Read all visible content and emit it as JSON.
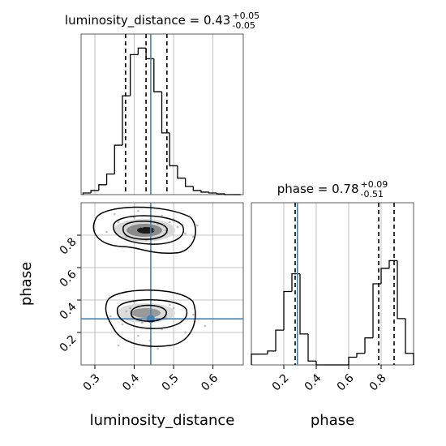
{
  "chart_data": [
    {
      "type": "histogram",
      "title": "luminosity_distance = 0.43",
      "title_plus": "+0.05",
      "title_minus": "-0.05",
      "bins": [
        0.27,
        0.29,
        0.31,
        0.33,
        0.35,
        0.37,
        0.39,
        0.41,
        0.43,
        0.45,
        0.47,
        0.49,
        0.51,
        0.53,
        0.55,
        0.57,
        0.59,
        0.61,
        0.63,
        0.65,
        0.67
      ],
      "counts": [
        2,
        5,
        12,
        25,
        60,
        120,
        170,
        178,
        165,
        125,
        75,
        35,
        20,
        10,
        5,
        3,
        2,
        1,
        0,
        0
      ],
      "xlim": [
        0.265,
        0.677
      ],
      "ylim": [
        0,
        195
      ],
      "color": "#000000",
      "quantiles": [
        0.378,
        0.43,
        0.483
      ],
      "truth": 0.442,
      "truth_color": "#4682b4",
      "grid": true
    },
    {
      "type": "scatter",
      "xlabel": "luminosity_distance",
      "ylabel": "phase",
      "x": [
        0.33,
        0.36,
        0.38,
        0.4,
        0.42,
        0.44,
        0.46,
        0.48,
        0.5,
        0.53,
        0.56,
        0.35,
        0.39,
        0.43,
        0.47,
        0.51,
        0.55,
        0.41,
        0.45,
        0.49,
        0.34,
        0.37,
        0.39,
        0.41,
        0.43,
        0.45,
        0.47,
        0.49,
        0.52,
        0.55,
        0.58,
        0.36,
        0.4,
        0.44,
        0.48,
        0.53,
        0.38,
        0.42,
        0.46,
        0.5
      ],
      "y": [
        0.82,
        0.88,
        0.79,
        0.91,
        0.85,
        0.8,
        0.87,
        0.83,
        0.9,
        0.81,
        0.86,
        0.93,
        0.84,
        0.77,
        0.92,
        0.85,
        0.79,
        0.95,
        0.83,
        0.88,
        0.3,
        0.25,
        0.35,
        0.18,
        0.28,
        0.32,
        0.22,
        0.37,
        0.27,
        0.31,
        0.24,
        0.12,
        0.39,
        0.15,
        0.29,
        0.2,
        0.33,
        0.26,
        0.1,
        0.35
      ],
      "color": "#9a9a9a",
      "xlim": [
        0.265,
        0.677
      ],
      "ylim": [
        0,
        1
      ],
      "xticks": [
        0.3,
        0.4,
        0.5,
        0.6
      ],
      "yticks": [
        0.2,
        0.4,
        0.6,
        0.8
      ],
      "truth": [
        0.442,
        0.284
      ],
      "truth_color": "#4682b4",
      "grid": true
    },
    {
      "type": "histogram",
      "title": "phase = 0.78",
      "title_plus": "+0.09",
      "title_minus": "-0.51",
      "xlabel": "phase",
      "bins": [
        0,
        0.05,
        0.1,
        0.15,
        0.2,
        0.25,
        0.3,
        0.35,
        0.4,
        0.45,
        0.5,
        0.55,
        0.6,
        0.65,
        0.7,
        0.75,
        0.8,
        0.85,
        0.9,
        0.95,
        1.0
      ],
      "counts": [
        14,
        14,
        18,
        45,
        95,
        118,
        40,
        5,
        0,
        0,
        0,
        0,
        10,
        15,
        35,
        105,
        125,
        135,
        60,
        15
      ],
      "xlim": [
        0,
        1
      ],
      "ylim": [
        0,
        210
      ],
      "xticks": [
        0.2,
        0.4,
        0.6,
        0.8
      ],
      "color": "#000000",
      "quantiles": [
        0.27,
        0.785,
        0.88
      ],
      "truth": 0.284,
      "truth_color": "#4682b4",
      "grid": true
    }
  ]
}
